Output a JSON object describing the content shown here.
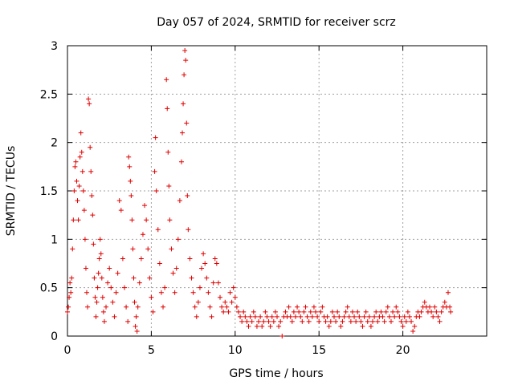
{
  "chart_data": {
    "type": "scatter",
    "title": "Day 057 of 2024, SRMTID for receiver scrz",
    "xlabel": "GPS time / hours",
    "ylabel": "SRMTID / TECUs",
    "xlim": [
      0,
      25
    ],
    "ylim": [
      0,
      3
    ],
    "xticks": [
      0,
      5,
      10,
      15,
      20
    ],
    "xtick_labels": [
      "0",
      "5",
      "10",
      "15",
      "20"
    ],
    "yticks": [
      0,
      0.5,
      1,
      1.5,
      2,
      2.5,
      3
    ],
    "ytick_labels": [
      "0",
      "0.5",
      "1",
      "1.5",
      "2",
      "2.5",
      "3"
    ],
    "grid": true,
    "marker": "+",
    "color": "#e00000",
    "series": [
      {
        "name": "SRMTID",
        "points": [
          [
            0.0,
            0.25
          ],
          [
            0.05,
            0.3
          ],
          [
            0.1,
            0.4
          ],
          [
            0.15,
            0.55
          ],
          [
            0.2,
            0.45
          ],
          [
            0.25,
            0.6
          ],
          [
            0.3,
            0.9
          ],
          [
            0.35,
            1.2
          ],
          [
            0.4,
            1.5
          ],
          [
            0.45,
            1.75
          ],
          [
            0.5,
            1.8
          ],
          [
            0.55,
            1.6
          ],
          [
            0.6,
            1.4
          ],
          [
            0.65,
            1.2
          ],
          [
            0.7,
            1.55
          ],
          [
            0.75,
            1.85
          ],
          [
            0.8,
            2.1
          ],
          [
            0.85,
            1.9
          ],
          [
            0.9,
            1.7
          ],
          [
            0.95,
            1.5
          ],
          [
            1.0,
            1.3
          ],
          [
            1.05,
            1.0
          ],
          [
            1.1,
            0.7
          ],
          [
            1.15,
            0.45
          ],
          [
            1.2,
            0.3
          ],
          [
            1.25,
            2.45
          ],
          [
            1.3,
            2.4
          ],
          [
            1.35,
            1.95
          ],
          [
            1.4,
            1.7
          ],
          [
            1.45,
            1.45
          ],
          [
            1.5,
            1.25
          ],
          [
            1.55,
            0.95
          ],
          [
            1.6,
            0.6
          ],
          [
            1.65,
            0.4
          ],
          [
            1.7,
            0.2
          ],
          [
            1.75,
            0.35
          ],
          [
            1.8,
            0.5
          ],
          [
            1.85,
            0.65
          ],
          [
            1.9,
            0.8
          ],
          [
            1.95,
            1.0
          ],
          [
            2.0,
            0.85
          ],
          [
            2.05,
            0.6
          ],
          [
            2.1,
            0.4
          ],
          [
            2.15,
            0.25
          ],
          [
            2.2,
            0.15
          ],
          [
            2.3,
            0.3
          ],
          [
            2.4,
            0.55
          ],
          [
            2.5,
            0.7
          ],
          [
            2.6,
            0.5
          ],
          [
            2.7,
            0.35
          ],
          [
            2.8,
            0.2
          ],
          [
            2.9,
            0.45
          ],
          [
            3.0,
            0.65
          ],
          [
            3.1,
            1.4
          ],
          [
            3.2,
            1.3
          ],
          [
            3.3,
            0.8
          ],
          [
            3.4,
            0.5
          ],
          [
            3.5,
            0.3
          ],
          [
            3.6,
            0.15
          ],
          [
            3.65,
            1.85
          ],
          [
            3.7,
            1.75
          ],
          [
            3.75,
            1.6
          ],
          [
            3.8,
            1.45
          ],
          [
            3.85,
            1.2
          ],
          [
            3.9,
            0.9
          ],
          [
            3.95,
            0.6
          ],
          [
            4.0,
            0.35
          ],
          [
            4.05,
            0.1
          ],
          [
            4.1,
            0.2
          ],
          [
            4.15,
            0.05
          ],
          [
            4.2,
            0.3
          ],
          [
            4.3,
            0.55
          ],
          [
            4.4,
            0.8
          ],
          [
            4.5,
            1.05
          ],
          [
            4.6,
            1.35
          ],
          [
            4.7,
            1.2
          ],
          [
            4.8,
            0.9
          ],
          [
            4.9,
            0.6
          ],
          [
            5.0,
            0.4
          ],
          [
            5.1,
            0.25
          ],
          [
            5.2,
            1.7
          ],
          [
            5.25,
            2.05
          ],
          [
            5.3,
            1.5
          ],
          [
            5.4,
            1.1
          ],
          [
            5.5,
            0.75
          ],
          [
            5.6,
            0.45
          ],
          [
            5.7,
            0.3
          ],
          [
            5.8,
            0.5
          ],
          [
            5.9,
            2.65
          ],
          [
            5.95,
            2.35
          ],
          [
            6.0,
            1.9
          ],
          [
            6.05,
            1.55
          ],
          [
            6.1,
            1.2
          ],
          [
            6.2,
            0.9
          ],
          [
            6.3,
            0.65
          ],
          [
            6.4,
            0.45
          ],
          [
            6.5,
            0.7
          ],
          [
            6.6,
            1.0
          ],
          [
            6.7,
            1.4
          ],
          [
            6.8,
            1.8
          ],
          [
            6.85,
            2.1
          ],
          [
            6.9,
            2.4
          ],
          [
            6.95,
            2.7
          ],
          [
            7.0,
            2.95
          ],
          [
            7.05,
            2.85
          ],
          [
            7.1,
            2.2
          ],
          [
            7.15,
            1.45
          ],
          [
            7.2,
            1.1
          ],
          [
            7.3,
            0.8
          ],
          [
            7.4,
            0.6
          ],
          [
            7.5,
            0.45
          ],
          [
            7.6,
            0.3
          ],
          [
            7.7,
            0.2
          ],
          [
            7.8,
            0.35
          ],
          [
            7.9,
            0.5
          ],
          [
            8.0,
            0.7
          ],
          [
            8.1,
            0.85
          ],
          [
            8.2,
            0.75
          ],
          [
            8.3,
            0.6
          ],
          [
            8.4,
            0.45
          ],
          [
            8.5,
            0.3
          ],
          [
            8.6,
            0.2
          ],
          [
            8.7,
            0.55
          ],
          [
            8.8,
            0.8
          ],
          [
            8.9,
            0.75
          ],
          [
            9.0,
            0.55
          ],
          [
            9.1,
            0.4
          ],
          [
            9.2,
            0.3
          ],
          [
            9.3,
            0.25
          ],
          [
            9.4,
            0.35
          ],
          [
            9.5,
            0.3
          ],
          [
            9.6,
            0.25
          ],
          [
            9.7,
            0.45
          ],
          [
            9.8,
            0.35
          ],
          [
            9.9,
            0.5
          ],
          [
            10.0,
            0.4
          ],
          [
            10.1,
            0.3
          ],
          [
            10.2,
            0.25
          ],
          [
            10.3,
            0.2
          ],
          [
            10.4,
            0.15
          ],
          [
            10.5,
            0.25
          ],
          [
            10.6,
            0.2
          ],
          [
            10.7,
            0.15
          ],
          [
            10.8,
            0.1
          ],
          [
            10.9,
            0.2
          ],
          [
            11.0,
            0.15
          ],
          [
            11.1,
            0.25
          ],
          [
            11.2,
            0.2
          ],
          [
            11.3,
            0.1
          ],
          [
            11.4,
            0.15
          ],
          [
            11.5,
            0.2
          ],
          [
            11.6,
            0.1
          ],
          [
            11.7,
            0.15
          ],
          [
            11.8,
            0.25
          ],
          [
            11.9,
            0.2
          ],
          [
            12.0,
            0.15
          ],
          [
            12.1,
            0.1
          ],
          [
            12.2,
            0.2
          ],
          [
            12.3,
            0.15
          ],
          [
            12.4,
            0.25
          ],
          [
            12.5,
            0.2
          ],
          [
            12.6,
            0.1
          ],
          [
            12.7,
            0.15
          ],
          [
            12.8,
            0.0
          ],
          [
            12.9,
            0.2
          ],
          [
            13.0,
            0.25
          ],
          [
            13.1,
            0.2
          ],
          [
            13.2,
            0.3
          ],
          [
            13.3,
            0.2
          ],
          [
            13.4,
            0.15
          ],
          [
            13.5,
            0.25
          ],
          [
            13.6,
            0.2
          ],
          [
            13.7,
            0.3
          ],
          [
            13.8,
            0.25
          ],
          [
            13.9,
            0.2
          ],
          [
            14.0,
            0.15
          ],
          [
            14.1,
            0.25
          ],
          [
            14.2,
            0.3
          ],
          [
            14.3,
            0.2
          ],
          [
            14.4,
            0.15
          ],
          [
            14.5,
            0.25
          ],
          [
            14.6,
            0.2
          ],
          [
            14.7,
            0.3
          ],
          [
            14.8,
            0.25
          ],
          [
            14.9,
            0.2
          ],
          [
            15.0,
            0.15
          ],
          [
            15.1,
            0.25
          ],
          [
            15.2,
            0.3
          ],
          [
            15.3,
            0.2
          ],
          [
            15.4,
            0.15
          ],
          [
            15.5,
            0.2
          ],
          [
            15.6,
            0.1
          ],
          [
            15.7,
            0.15
          ],
          [
            15.8,
            0.25
          ],
          [
            15.9,
            0.2
          ],
          [
            16.0,
            0.15
          ],
          [
            16.1,
            0.25
          ],
          [
            16.2,
            0.2
          ],
          [
            16.3,
            0.1
          ],
          [
            16.4,
            0.15
          ],
          [
            16.5,
            0.2
          ],
          [
            16.6,
            0.25
          ],
          [
            16.7,
            0.3
          ],
          [
            16.8,
            0.2
          ],
          [
            16.9,
            0.15
          ],
          [
            17.0,
            0.25
          ],
          [
            17.1,
            0.2
          ],
          [
            17.2,
            0.15
          ],
          [
            17.3,
            0.25
          ],
          [
            17.4,
            0.2
          ],
          [
            17.5,
            0.15
          ],
          [
            17.6,
            0.1
          ],
          [
            17.7,
            0.2
          ],
          [
            17.8,
            0.25
          ],
          [
            17.9,
            0.15
          ],
          [
            18.0,
            0.2
          ],
          [
            18.1,
            0.1
          ],
          [
            18.2,
            0.15
          ],
          [
            18.3,
            0.2
          ],
          [
            18.4,
            0.25
          ],
          [
            18.5,
            0.15
          ],
          [
            18.6,
            0.2
          ],
          [
            18.7,
            0.25
          ],
          [
            18.8,
            0.2
          ],
          [
            18.9,
            0.15
          ],
          [
            19.0,
            0.25
          ],
          [
            19.1,
            0.3
          ],
          [
            19.2,
            0.2
          ],
          [
            19.3,
            0.15
          ],
          [
            19.4,
            0.25
          ],
          [
            19.5,
            0.2
          ],
          [
            19.6,
            0.3
          ],
          [
            19.7,
            0.25
          ],
          [
            19.8,
            0.2
          ],
          [
            19.9,
            0.15
          ],
          [
            20.0,
            0.1
          ],
          [
            20.1,
            0.2
          ],
          [
            20.2,
            0.15
          ],
          [
            20.3,
            0.25
          ],
          [
            20.4,
            0.2
          ],
          [
            20.5,
            0.15
          ],
          [
            20.6,
            0.05
          ],
          [
            20.7,
            0.1
          ],
          [
            20.8,
            0.2
          ],
          [
            20.9,
            0.25
          ],
          [
            21.0,
            0.2
          ],
          [
            21.1,
            0.25
          ],
          [
            21.2,
            0.3
          ],
          [
            21.3,
            0.35
          ],
          [
            21.4,
            0.3
          ],
          [
            21.5,
            0.25
          ],
          [
            21.6,
            0.3
          ],
          [
            21.7,
            0.25
          ],
          [
            21.8,
            0.2
          ],
          [
            21.9,
            0.3
          ],
          [
            22.0,
            0.25
          ],
          [
            22.1,
            0.2
          ],
          [
            22.2,
            0.15
          ],
          [
            22.3,
            0.25
          ],
          [
            22.4,
            0.3
          ],
          [
            22.5,
            0.35
          ],
          [
            22.6,
            0.3
          ],
          [
            22.7,
            0.45
          ],
          [
            22.8,
            0.3
          ],
          [
            22.85,
            0.25
          ]
        ]
      }
    ]
  }
}
